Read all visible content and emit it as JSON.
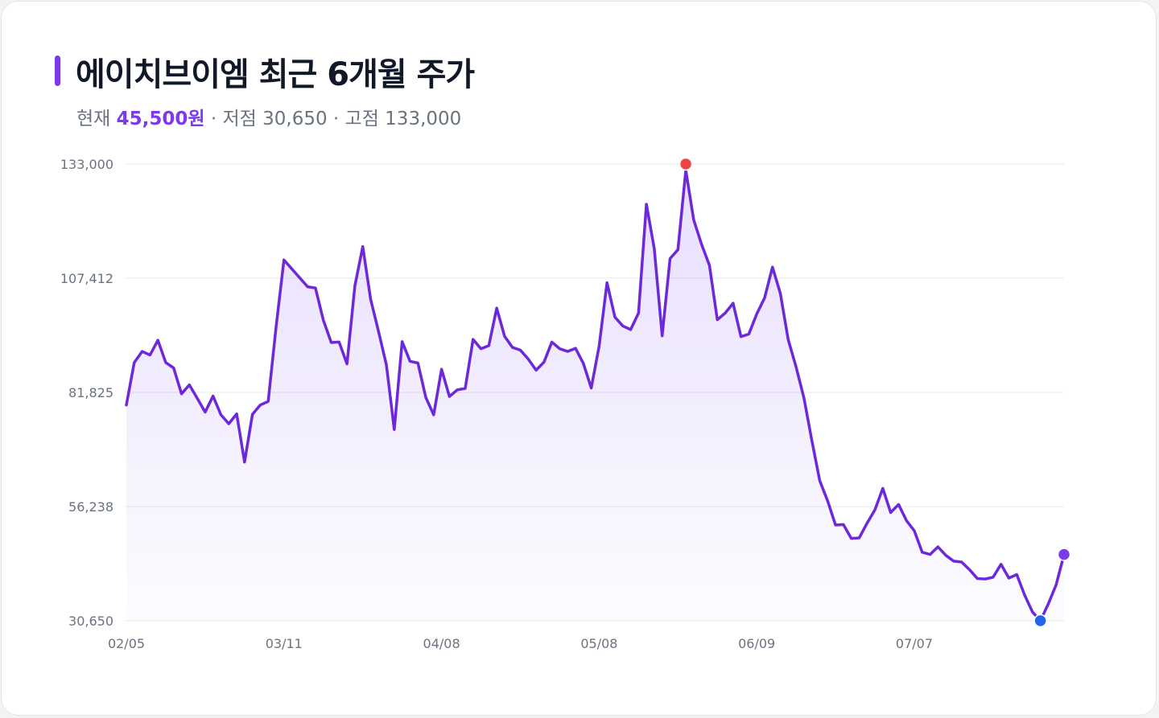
{
  "header": {
    "title": "에이치브이엠 최근 6개월 주가",
    "current_label": "현재",
    "current_value": "45,500원",
    "low_text": "· 저점 30,650",
    "high_text": "· 고점 133,000"
  },
  "colors": {
    "accent": "#7c3aed",
    "line": "#6d28d9",
    "high_marker": "#ef4444",
    "low_marker": "#2563eb",
    "grid": "#e5e7eb",
    "text": "#111827",
    "muted": "#6b7280"
  },
  "chart_data": {
    "type": "line",
    "title": "에이치브이엠 최근 6개월 주가",
    "xlabel": "",
    "ylabel": "",
    "ylim": [
      30650,
      133000
    ],
    "yticks": [
      {
        "value": 133000,
        "label": "133,000"
      },
      {
        "value": 107412,
        "label": "107,412"
      },
      {
        "value": 81825,
        "label": "81,825"
      },
      {
        "value": 56238,
        "label": "56,238"
      },
      {
        "value": 30650,
        "label": "30,650"
      }
    ],
    "xticks": [
      {
        "index": 0,
        "label": "02/05"
      },
      {
        "index": 20,
        "label": "03/11"
      },
      {
        "index": 40,
        "label": "04/08"
      },
      {
        "index": 60,
        "label": "05/08"
      },
      {
        "index": 80,
        "label": "06/09"
      },
      {
        "index": 100,
        "label": "07/07"
      }
    ],
    "grid": true,
    "fill": "area-gradient",
    "series": [
      {
        "values": [
          79000,
          88500,
          91000,
          90200,
          93500,
          88500,
          87300,
          81500,
          83500,
          80500,
          77400,
          81000,
          76800,
          74800,
          77000,
          66200,
          76900,
          79000,
          79800,
          96500,
          111500,
          109500,
          107500,
          105500,
          105200,
          98000,
          93000,
          93100,
          88200,
          105700,
          114500,
          102700,
          95500,
          88000,
          73500,
          93200,
          88800,
          88400,
          80700,
          76800,
          87000,
          80900,
          82400,
          82700,
          93700,
          91600,
          92300,
          100700,
          94400,
          91900,
          91300,
          89300,
          86800,
          88600,
          93100,
          91600,
          91000,
          91700,
          88300,
          82800,
          92200,
          106400,
          98700,
          96700,
          95900,
          99600,
          124000,
          114000,
          94500,
          111800,
          113800,
          131600,
          120500,
          115000,
          110300,
          98100,
          99600,
          101800,
          94300,
          94900,
          99400,
          103000,
          109900,
          104000,
          93600,
          87500,
          80500,
          71000,
          62000,
          57500,
          52100,
          52200,
          49100,
          49200,
          52500,
          55500,
          60300,
          54900,
          56700,
          53100,
          50800,
          46000,
          45500,
          47200,
          45300,
          44000,
          43800,
          42100,
          40100,
          40000,
          40400,
          43300,
          40200,
          41000,
          36400,
          32600,
          30650,
          34400,
          38700,
          45500
        ]
      }
    ],
    "markers": {
      "high": {
        "index": 71,
        "value": 133000
      },
      "low": {
        "index": 116,
        "value": 30650
      },
      "current": {
        "index": 119,
        "value": 45500
      }
    }
  }
}
